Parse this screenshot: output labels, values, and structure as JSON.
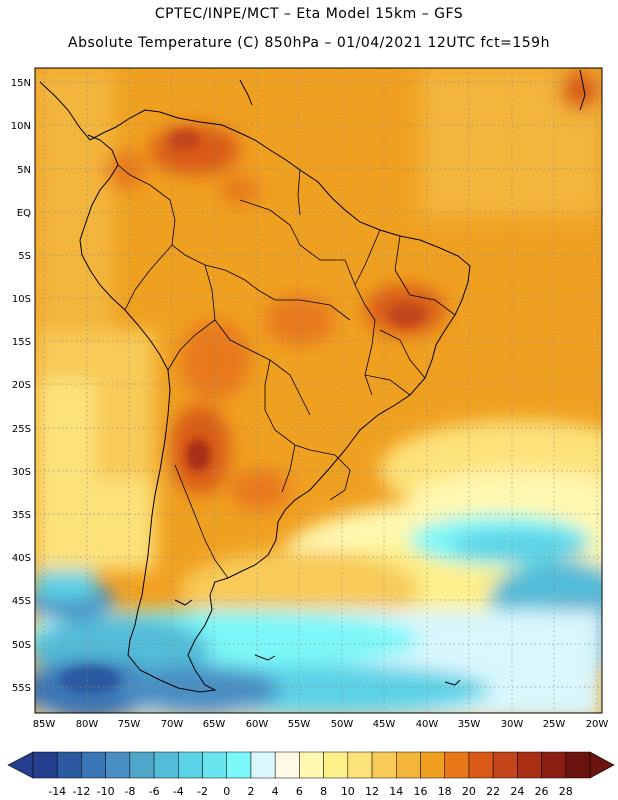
{
  "header": {
    "line1": "CPTEC/INPE/MCT –  Eta Model 15km – GFS",
    "line2": "Absolute Temperature (C) 850hPa – 01/04/2021 12UTC fct=159h"
  },
  "map": {
    "lat_labels": [
      "15N",
      "10N",
      "5N",
      "EQ",
      "5S",
      "10S",
      "15S",
      "20S",
      "25S",
      "30S",
      "35S",
      "40S",
      "45S",
      "50S",
      "55S"
    ],
    "lon_labels": [
      "85W",
      "80W",
      "75W",
      "70W",
      "65W",
      "60W",
      "55W",
      "50W",
      "45W",
      "40W",
      "35W",
      "30W",
      "25W",
      "20W"
    ]
  },
  "legend": {
    "ticks": [
      "-14",
      "-12",
      "-10",
      "-8",
      "-6",
      "-4",
      "-2",
      "0",
      "2",
      "4",
      "6",
      "8",
      "10",
      "12",
      "14",
      "16",
      "18",
      "20",
      "22",
      "24",
      "26",
      "28"
    ],
    "colors": [
      "#253e8e",
      "#2c5aa0",
      "#3a76b5",
      "#4a8fc4",
      "#4ea6c9",
      "#52bcd8",
      "#5cd2e6",
      "#6ae4ef",
      "#7bf7f9",
      "#d9f7fc",
      "#fff8e6",
      "#fff8b0",
      "#fdf08a",
      "#fde27a",
      "#f8cb58",
      "#f3b53a",
      "#f0a020",
      "#e8781a",
      "#d95a16",
      "#c2461a",
      "#a82e14",
      "#8a1d12",
      "#6b1410"
    ],
    "low_arrow_color": "#253e8e",
    "high_arrow_color": "#6b1410"
  }
}
